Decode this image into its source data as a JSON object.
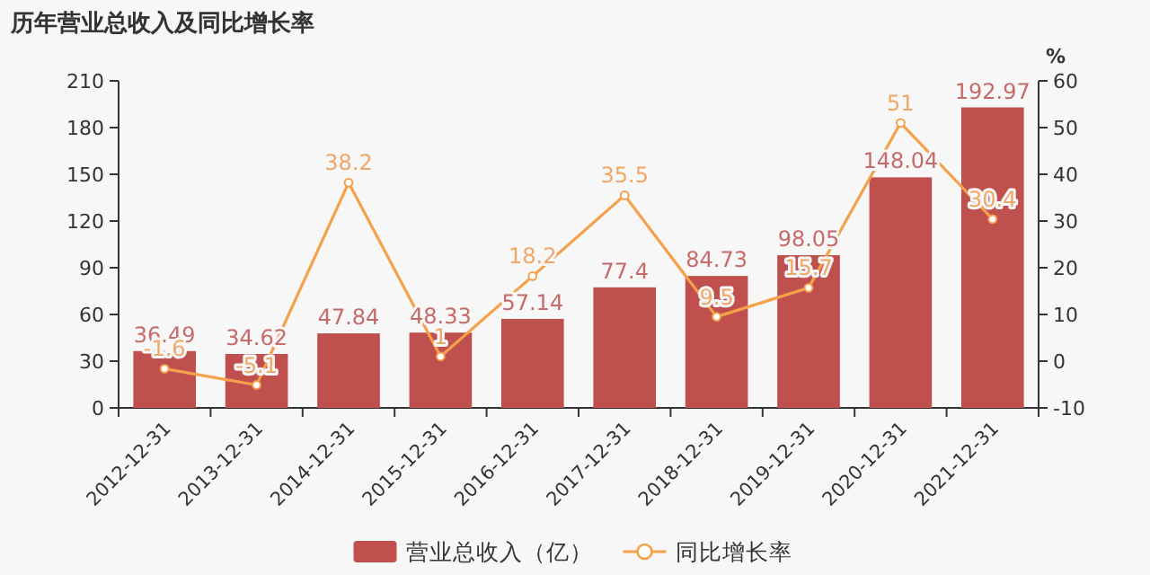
{
  "chart_data": {
    "type": "bar",
    "title": "历年营业总收入及同比增长率",
    "categories": [
      "2012-12-31",
      "2013-12-31",
      "2014-12-31",
      "2015-12-31",
      "2016-12-31",
      "2017-12-31",
      "2018-12-31",
      "2019-12-31",
      "2020-12-31",
      "2021-12-31"
    ],
    "series": [
      {
        "name": "营业总收入（亿）",
        "color": "#c0504d",
        "values": [
          36.49,
          34.62,
          47.84,
          48.33,
          57.14,
          77.4,
          84.73,
          98.05,
          148.04,
          192.97
        ]
      },
      {
        "name": "同比增长率",
        "type": "line",
        "axis": "y2",
        "color": "#f5a04a",
        "values": [
          -1.6,
          -5.1,
          38.2,
          1,
          18.2,
          35.5,
          9.5,
          15.7,
          51,
          30.4
        ]
      }
    ],
    "ylim": [
      0,
      210
    ],
    "yticks": [
      0,
      30,
      60,
      90,
      120,
      150,
      180,
      210
    ],
    "y2lim": [
      -10,
      60
    ],
    "y2ticks": [
      -10,
      0,
      10,
      20,
      30,
      40,
      50,
      60
    ],
    "y2label": "%",
    "data_labels": true,
    "legend": "bottom",
    "marker": "circle",
    "grid": false
  }
}
